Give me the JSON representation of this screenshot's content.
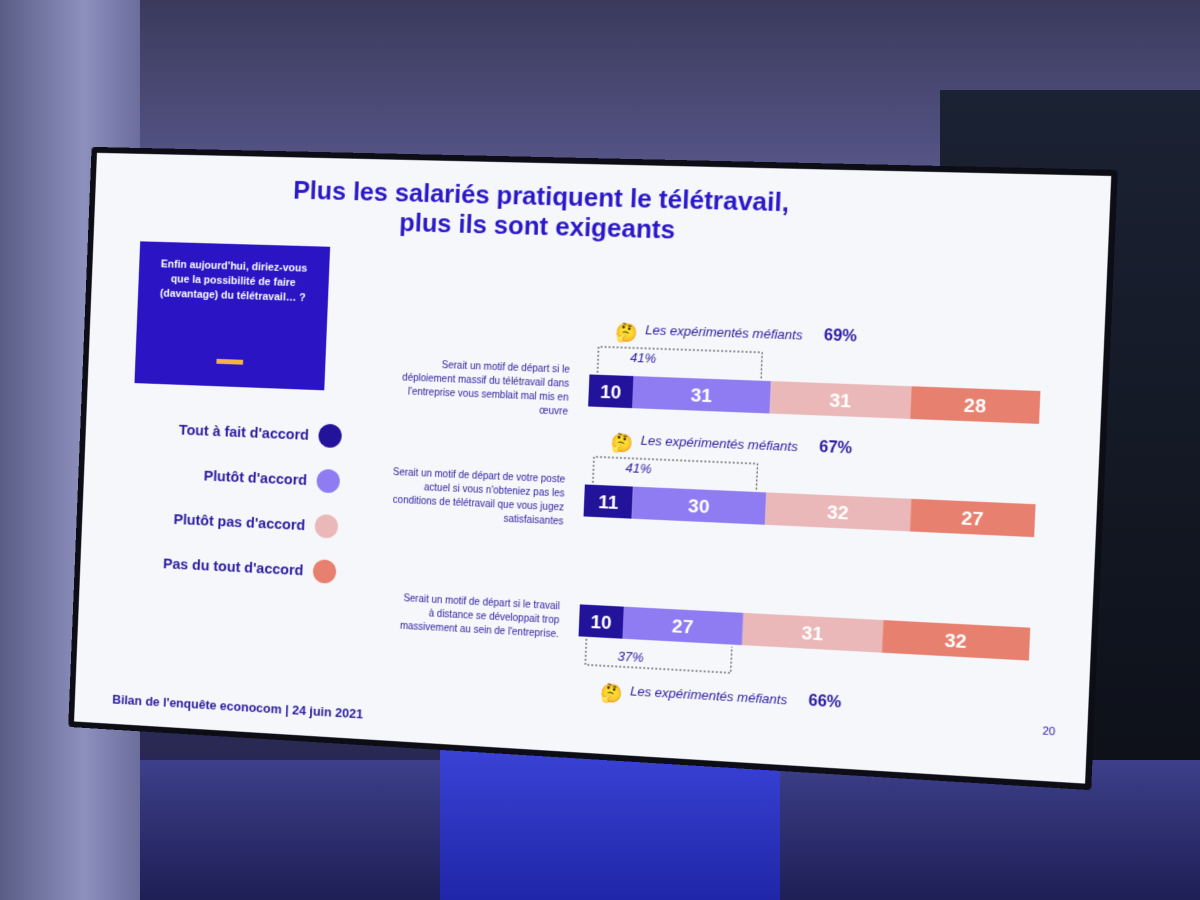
{
  "slide": {
    "title_line1": "Plus les salariés pratiquent le télétravail,",
    "title_line2": "plus ils sont exigeants",
    "question": "Enfin aujourd'hui, diriez-vous que la possibilité de faire (davantage) du télétravail… ?",
    "footer": "Bilan de l'enquête econocom | 24 juin 2021",
    "page_number": "20"
  },
  "legend": [
    {
      "label": "Tout à fait d'accord",
      "color": "#23129a"
    },
    {
      "label": "Plutôt d'accord",
      "color": "#8f7cf2"
    },
    {
      "label": "Plutôt pas d'accord",
      "color": "#eab8b8"
    },
    {
      "label": "Pas du tout d'accord",
      "color": "#e8806f"
    }
  ],
  "chart_data": {
    "type": "bar",
    "orientation": "horizontal",
    "stacked": true,
    "categories": [
      "Serait un motif de départ si le déploiement massif du télétravail dans l'entreprise vous semblait mal mis en œuvre",
      "Serait un motif de départ de votre poste actuel si vous n'obteniez pas les conditions de télétravail que vous jugez satisfaisantes",
      "Serait un motif de départ si le travail à distance se développait trop massivement au sein de l'entreprise."
    ],
    "series": [
      {
        "name": "Tout à fait d'accord",
        "values": [
          10,
          11,
          10
        ]
      },
      {
        "name": "Plutôt d'accord",
        "values": [
          31,
          30,
          27
        ]
      },
      {
        "name": "Plutôt pas d'accord",
        "values": [
          31,
          32,
          31
        ]
      },
      {
        "name": "Pas du tout d'accord",
        "values": [
          28,
          27,
          32
        ]
      }
    ],
    "agree_totals": [
      "41%",
      "41%",
      "37%"
    ],
    "annotations": [
      {
        "label": "Les expérimentés méfiants",
        "value": "69%",
        "emoji": "🤔"
      },
      {
        "label": "Les expérimentés méfiants",
        "value": "67%",
        "emoji": "🤔"
      },
      {
        "label": "Les expérimentés méfiants",
        "value": "66%",
        "emoji": "🤔"
      }
    ],
    "colors": [
      "#23129a",
      "#8f7cf2",
      "#eab8b8",
      "#e8806f"
    ]
  }
}
